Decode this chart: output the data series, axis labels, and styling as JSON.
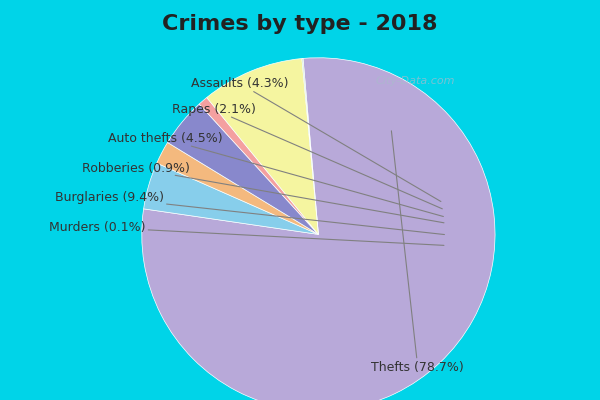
{
  "title": "Crimes by type - 2018",
  "slices": [
    {
      "label": "Thefts",
      "pct": 78.7,
      "color": "#b8a9d9"
    },
    {
      "label": "Assaults",
      "pct": 4.3,
      "color": "#87ceeb"
    },
    {
      "label": "Rapes",
      "pct": 2.1,
      "color": "#f4b97e"
    },
    {
      "label": "Auto thefts",
      "pct": 4.5,
      "color": "#8888cc"
    },
    {
      "label": "Robberies",
      "pct": 0.9,
      "color": "#f4a0a0"
    },
    {
      "label": "Burglaries",
      "pct": 9.4,
      "color": "#f5f5a0"
    },
    {
      "label": "Murders",
      "pct": 0.1,
      "color": "#b8d9b8"
    }
  ],
  "background_top": "#00d4e8",
  "background_main": "#d8eddc",
  "title_fontsize": 16,
  "label_fontsize": 9,
  "watermark": "City-Data.com"
}
